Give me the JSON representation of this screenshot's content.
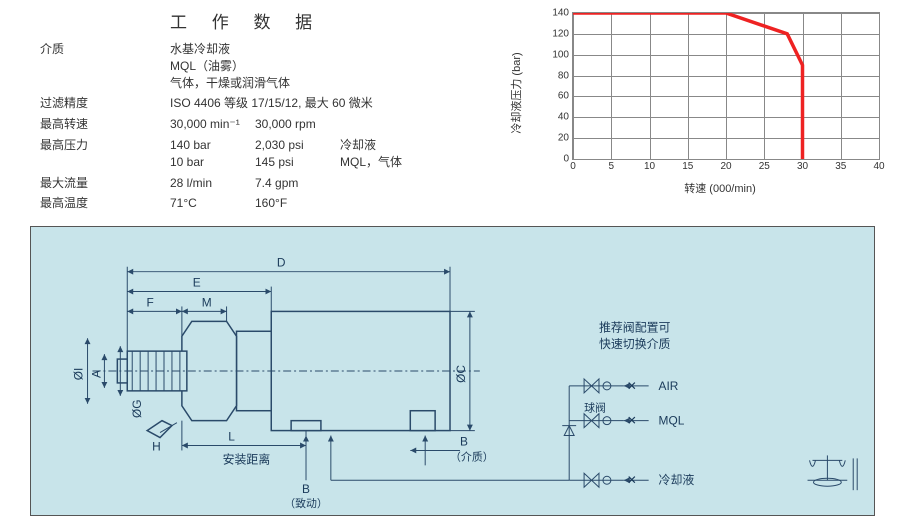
{
  "title": "工 作 数 据",
  "specs": {
    "medium": {
      "label": "介质",
      "v1": "水基冷却液",
      "v2": "MQL（油雾）",
      "v3": "气体，干燥或润滑气体"
    },
    "filtration": {
      "label": "过滤精度",
      "v1": "ISO 4406 等级 17/15/12, 最大 60 微米"
    },
    "maxspeed": {
      "label": "最高转速",
      "c1": "30,000 min⁻¹",
      "c2": "30,000 rpm"
    },
    "maxpress": {
      "label": "最高压力",
      "r1c1": "140 bar",
      "r1c2": "2,030 psi",
      "r1c3": "冷却液",
      "r2c1": "10 bar",
      "r2c2": "145 psi",
      "r2c3": "MQL，气体"
    },
    "maxflow": {
      "label": "最大流量",
      "c1": "28 l/min",
      "c2": "7.4 gpm"
    },
    "maxtemp": {
      "label": "最高温度",
      "c1": "71°C",
      "c2": "160°F"
    }
  },
  "chart": {
    "type": "line",
    "y_label": "冷却液压力 (bar)",
    "x_label": "转速 (000/min)",
    "xlim": [
      0,
      40
    ],
    "ylim": [
      0,
      140
    ],
    "xticks": [
      0,
      5,
      10,
      15,
      20,
      25,
      30,
      35,
      40
    ],
    "yticks": [
      0,
      20,
      40,
      60,
      80,
      100,
      120,
      140
    ],
    "grid_color": "#888888",
    "line_color": "#ee2222",
    "line_width": 3.5,
    "background_color": "#ffffff",
    "points_x": [
      0,
      20,
      28,
      30,
      30
    ],
    "points_y": [
      140,
      140,
      120,
      90,
      0
    ]
  },
  "diagram": {
    "dims": {
      "D": "D",
      "E": "E",
      "F": "F",
      "M": "M",
      "L": "L",
      "OI": "ØI",
      "A": "A",
      "OG": "ØG",
      "OC": "ØC",
      "H": "H"
    },
    "labels": {
      "mount_distance": "安装距离",
      "B_act": "B",
      "B_act_sub": "（致动）",
      "B_med": "B",
      "B_med_sub": "（介质）",
      "recommend1": "推荐阀配置可",
      "recommend2": "快速切换介质",
      "air": "AIR",
      "mql": "MQL",
      "coolant": "冷却液",
      "ball_valve": "球阀",
      "cross1": "✕",
      "cross2": "✕",
      "cross3": "✕"
    }
  }
}
